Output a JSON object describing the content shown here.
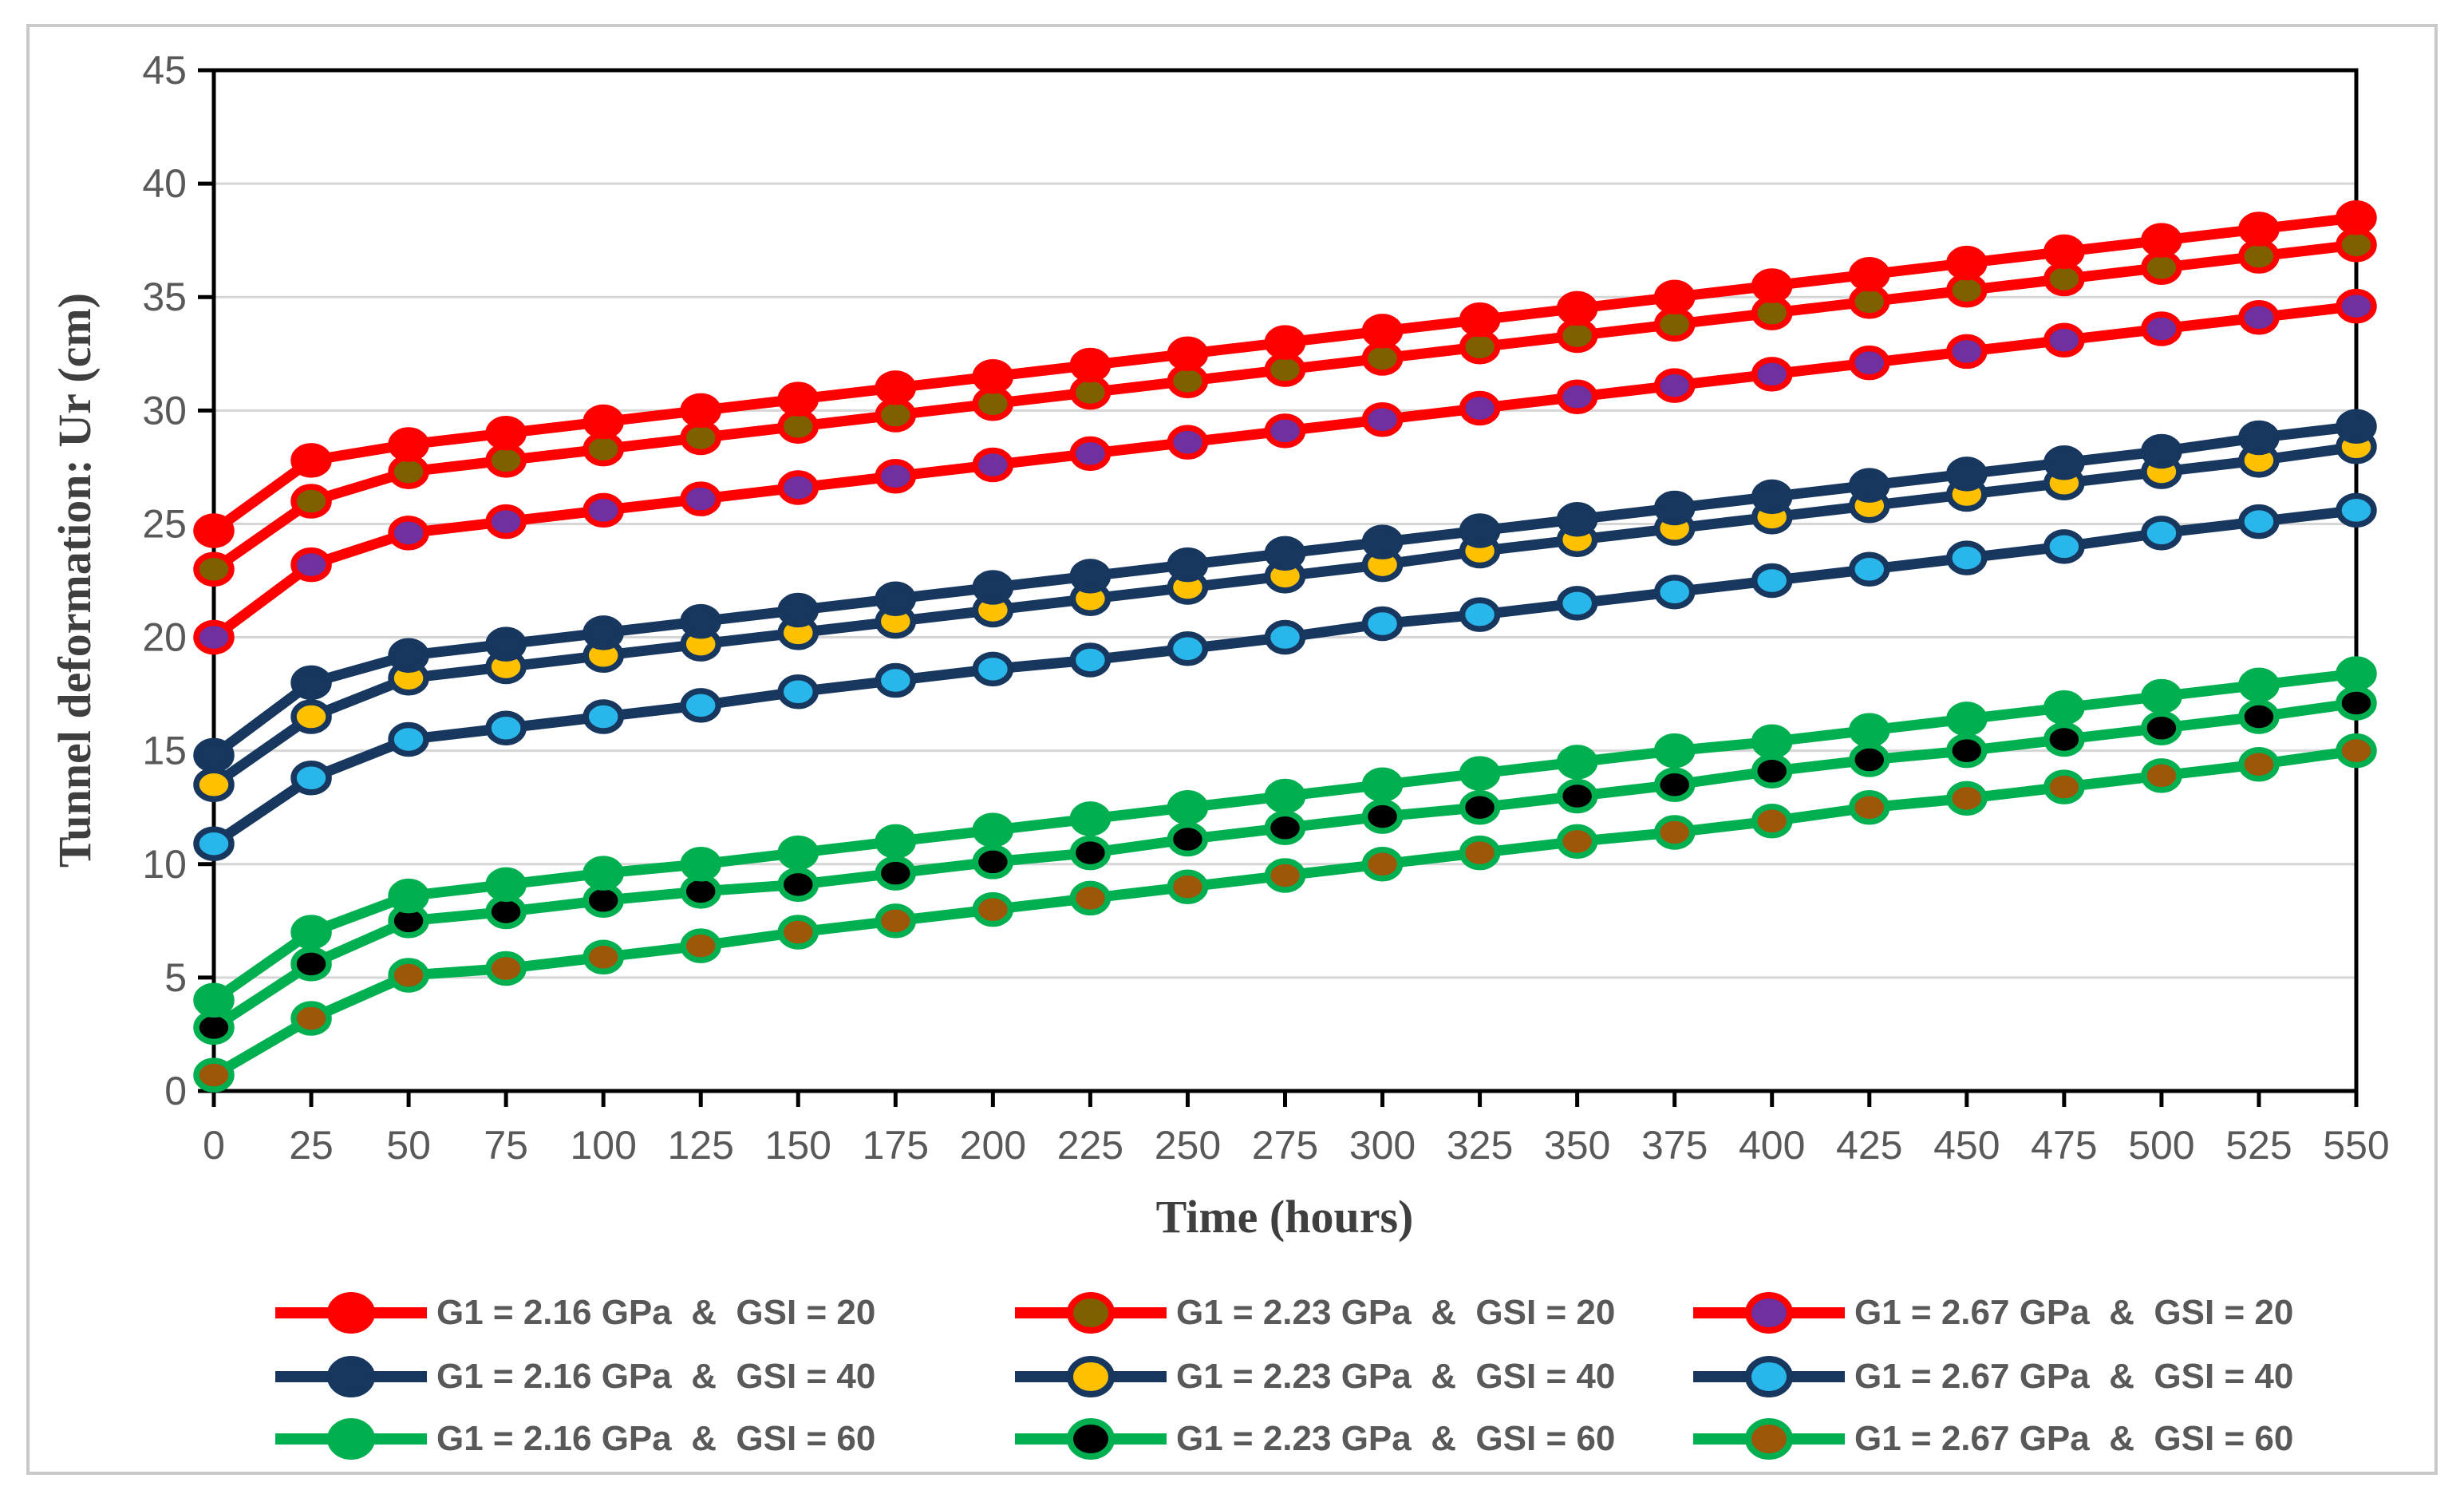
{
  "figure": {
    "background": "#FFFFFF",
    "border_color": "#C9C9C9"
  },
  "chart_data": {
    "type": "line",
    "title": "",
    "xlabel": "Time (hours)",
    "ylabel": "Tunnel deformation: Ur (cm)",
    "xlim": [
      0,
      550
    ],
    "ylim": [
      0,
      45
    ],
    "grid": "horizontal",
    "legend_position": "bottom",
    "x": [
      0,
      25,
      50,
      75,
      100,
      125,
      150,
      175,
      200,
      225,
      250,
      275,
      300,
      325,
      350,
      375,
      400,
      425,
      450,
      475,
      500,
      525,
      550
    ],
    "x_tick_labels": [
      "0",
      "25",
      "50",
      "75",
      "100",
      "125",
      "150",
      "175",
      "200",
      "225",
      "250",
      "275",
      "300",
      "325",
      "350",
      "375",
      "400",
      "425",
      "450",
      "475",
      "500",
      "525",
      "550"
    ],
    "y_ticks": [
      0,
      5,
      10,
      15,
      20,
      25,
      30,
      35,
      40,
      45
    ],
    "colors": {
      "axis": "#000000",
      "gridline": "#D6D6D6",
      "tick_label": "#595959",
      "axis_title": "#3F3F3F",
      "red": "#FE0000",
      "navy": "#17375E",
      "green": "#00B050",
      "dark_yellow": "#7F6000",
      "purple": "#7030A0",
      "gold": "#FFC000",
      "light_blue": "#29B6EA",
      "black": "#000000",
      "brown": "#9C5708"
    },
    "series": [
      {
        "name": "G1 = 2.16 GPa  &  GSI = 20",
        "line_color": "#FE0000",
        "marker_fill": "#FE0000",
        "marker_stroke": "#FE0000",
        "values": [
          24.7,
          27.8,
          28.5,
          29.0,
          29.5,
          30.0,
          30.5,
          31.0,
          31.5,
          32.0,
          32.5,
          33.0,
          33.5,
          34.0,
          34.5,
          35.0,
          35.5,
          36.0,
          36.5,
          37.0,
          37.5,
          38.0,
          38.5
        ]
      },
      {
        "name": "G1 = 2.23 GPa  &  GSI = 20",
        "line_color": "#FE0000",
        "marker_fill": "#7F6000",
        "marker_stroke": "#FE0000",
        "values": [
          23.0,
          26.0,
          27.3,
          27.8,
          28.3,
          28.8,
          29.3,
          29.8,
          30.3,
          30.8,
          31.3,
          31.8,
          32.3,
          32.8,
          33.3,
          33.8,
          34.3,
          34.8,
          35.3,
          35.8,
          36.3,
          36.8,
          37.3
        ]
      },
      {
        "name": "G1 = 2.67 GPa  &  GSI = 20",
        "line_color": "#FE0000",
        "marker_fill": "#7030A0",
        "marker_stroke": "#FE0000",
        "values": [
          20.0,
          23.2,
          24.6,
          25.1,
          25.6,
          26.1,
          26.6,
          27.1,
          27.6,
          28.1,
          28.6,
          29.1,
          29.6,
          30.1,
          30.6,
          31.1,
          31.6,
          32.1,
          32.6,
          33.1,
          33.6,
          34.1,
          34.6
        ]
      },
      {
        "name": "G1 = 2.16 GPa  &  GSI = 40",
        "line_color": "#17375E",
        "marker_fill": "#17375E",
        "marker_stroke": "#17375E",
        "values": [
          14.8,
          18.0,
          19.2,
          19.7,
          20.2,
          20.7,
          21.2,
          21.7,
          22.2,
          22.7,
          23.2,
          23.7,
          24.2,
          24.7,
          25.2,
          25.7,
          26.2,
          26.7,
          27.2,
          27.7,
          28.2,
          28.8,
          29.3
        ]
      },
      {
        "name": "G1 = 2.23 GPa  &  GSI = 40",
        "line_color": "#17375E",
        "marker_fill": "#FFC000",
        "marker_stroke": "#17375E",
        "values": [
          13.5,
          16.5,
          18.2,
          18.7,
          19.2,
          19.7,
          20.2,
          20.7,
          21.2,
          21.7,
          22.2,
          22.7,
          23.2,
          23.8,
          24.3,
          24.8,
          25.3,
          25.8,
          26.3,
          26.8,
          27.3,
          27.8,
          28.4
        ]
      },
      {
        "name": "G1 = 2.67 GPa  &  GSI = 40",
        "line_color": "#17375E",
        "marker_fill": "#29B6EA",
        "marker_stroke": "#17375E",
        "values": [
          10.9,
          13.8,
          15.5,
          16.0,
          16.5,
          17.0,
          17.6,
          18.1,
          18.6,
          19.0,
          19.5,
          20.0,
          20.6,
          21.0,
          21.5,
          22.0,
          22.5,
          23.0,
          23.5,
          24.0,
          24.6,
          25.1,
          25.6
        ]
      },
      {
        "name": "G1 = 2.16 GPa  &  GSI = 60",
        "line_color": "#00B050",
        "marker_fill": "#00B050",
        "marker_stroke": "#00B050",
        "values": [
          4.0,
          7.0,
          8.6,
          9.1,
          9.6,
          10.0,
          10.5,
          11.0,
          11.5,
          12.0,
          12.5,
          13.0,
          13.5,
          14.0,
          14.5,
          15.0,
          15.4,
          15.9,
          16.4,
          16.9,
          17.4,
          17.9,
          18.4
        ]
      },
      {
        "name": "G1 = 2.23 GPa  &  GSI = 60",
        "line_color": "#00B050",
        "marker_fill": "#000000",
        "marker_stroke": "#00B050",
        "values": [
          2.8,
          5.6,
          7.5,
          7.9,
          8.4,
          8.8,
          9.1,
          9.6,
          10.1,
          10.5,
          11.1,
          11.6,
          12.1,
          12.5,
          13.0,
          13.5,
          14.1,
          14.6,
          15.0,
          15.5,
          16.0,
          16.5,
          17.1
        ]
      },
      {
        "name": "G1 = 2.67 GPa  &  GSI = 60",
        "line_color": "#00B050",
        "marker_fill": "#9C5708",
        "marker_stroke": "#00B050",
        "values": [
          0.7,
          3.2,
          5.1,
          5.4,
          5.9,
          6.4,
          7.0,
          7.5,
          8.0,
          8.5,
          9.0,
          9.5,
          10.0,
          10.5,
          11.0,
          11.4,
          11.9,
          12.5,
          12.9,
          13.4,
          13.9,
          14.4,
          15.0
        ]
      }
    ]
  }
}
